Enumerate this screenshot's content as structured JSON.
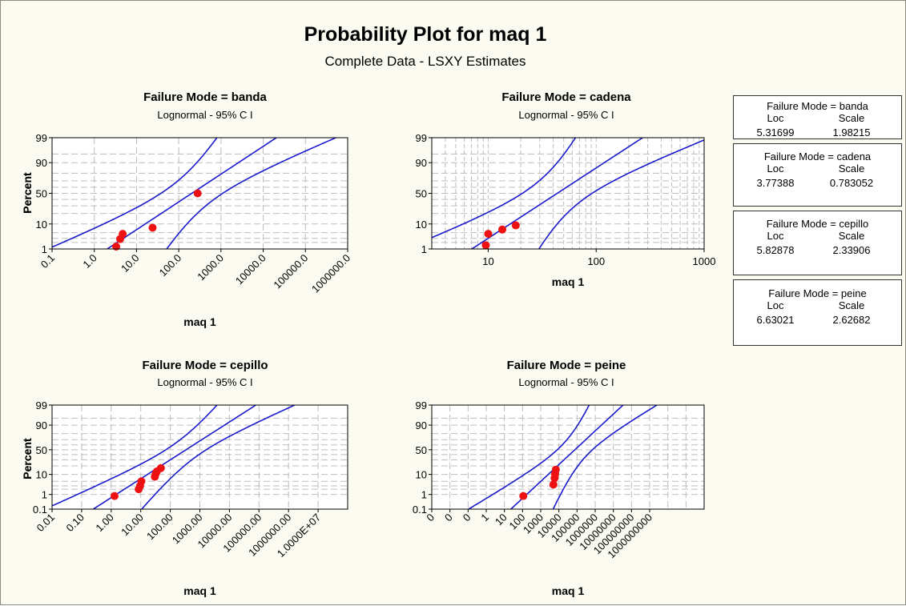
{
  "title": "Probability Plot for maq 1",
  "subtitle": "Complete Data - LSXY Estimates",
  "colors": {
    "background": "#fbfbf1",
    "line": "#1a1acc",
    "point": "#ee1111",
    "grid": "#bdbdbd"
  },
  "legend_labels": {
    "loc": "Loc",
    "scale": "Scale"
  },
  "chart_data": [
    {
      "type": "scatter",
      "title": "Failure Mode = banda",
      "subtitle": "Lognormal - 95% C I",
      "xlabel": "maq 1",
      "ylabel": "Percent",
      "x_scale": "log",
      "y_scale": "lognormal probability",
      "xlim": [
        0.1,
        1000000.0
      ],
      "ylim": [
        1,
        99
      ],
      "x_ticks": [
        "0.1",
        "1.0",
        "10.0",
        "100.0",
        "1000.0",
        "10000.0",
        "100000.0",
        "1000000.0"
      ],
      "y_ticks": [
        "1",
        "10",
        "50",
        "90",
        "99"
      ],
      "grid": true,
      "loc": 5.31699,
      "scale": 1.98215,
      "loc_label": "5.31699",
      "scale_label": "1.98215",
      "points": [
        {
          "x": 3.3,
          "y": 1.3
        },
        {
          "x": 4.1,
          "y": 2.8
        },
        {
          "x": 4.7,
          "y": 4.5
        },
        {
          "x": 24,
          "y": 7.5
        },
        {
          "x": 280,
          "y": 50
        }
      ]
    },
    {
      "type": "scatter",
      "title": "Failure Mode = cadena",
      "subtitle": "Lognormal - 95% C I",
      "xlabel": "maq 1",
      "ylabel": "Percent",
      "x_scale": "log",
      "y_scale": "lognormal probability",
      "xlim": [
        3,
        1000
      ],
      "ylim": [
        1,
        99
      ],
      "x_ticks": [
        "10",
        "100",
        "1000"
      ],
      "y_ticks": [
        "1",
        "10",
        "50",
        "90",
        "99"
      ],
      "grid": true,
      "loc": 3.77388,
      "scale": 0.783052,
      "loc_label": "3.77388",
      "scale_label": "0.783052",
      "points": [
        {
          "x": 9.5,
          "y": 1.5
        },
        {
          "x": 10,
          "y": 4.5
        },
        {
          "x": 13.5,
          "y": 6.5
        },
        {
          "x": 18,
          "y": 9
        }
      ]
    },
    {
      "type": "scatter",
      "title": "Failure Mode = cepillo",
      "subtitle": "Lognormal - 95% C I",
      "xlabel": "maq 1",
      "ylabel": "Percent",
      "x_scale": "log",
      "y_scale": "lognormal probability",
      "xlim": [
        0.01,
        100000000.0
      ],
      "ylim": [
        0.1,
        99
      ],
      "x_ticks": [
        "0.01",
        "0.10",
        "1.00",
        "10.00",
        "100.00",
        "1000.00",
        "10000.00",
        "100000.00",
        "1000000.00",
        "1.0000E+07"
      ],
      "y_ticks": [
        "0.1",
        "1",
        "10",
        "50",
        "90",
        "99"
      ],
      "grid": true,
      "loc": 5.82878,
      "scale": 2.33906,
      "loc_label": "5.82878",
      "scale_label": "2.33906",
      "points": [
        {
          "x": 1.3,
          "y": 0.8
        },
        {
          "x": 8.5,
          "y": 2
        },
        {
          "x": 9.5,
          "y": 3
        },
        {
          "x": 10.5,
          "y": 5
        },
        {
          "x": 30,
          "y": 8
        },
        {
          "x": 32,
          "y": 10.5
        },
        {
          "x": 35,
          "y": 13
        },
        {
          "x": 48,
          "y": 17
        }
      ]
    },
    {
      "type": "scatter",
      "title": "Failure Mode = peine",
      "subtitle": "Lognormal - 95% C I",
      "xlabel": "maq 1",
      "ylabel": "Percent",
      "x_scale": "log",
      "y_scale": "lognormal probability",
      "xlim": [
        1e-05,
        10000000000.0
      ],
      "ylim": [
        0.1,
        99
      ],
      "x_ticks": [
        "0",
        "0",
        "0",
        "1",
        "10",
        "100",
        "1000",
        "10000",
        "100000",
        "1000000",
        "10000000",
        "100000000",
        "1000000000"
      ],
      "y_ticks": [
        "0.1",
        "1",
        "10",
        "50",
        "90",
        "99"
      ],
      "grid": true,
      "loc": 6.63021,
      "scale": 2.62682,
      "loc_label": "6.63021",
      "scale_label": "2.62682",
      "points": [
        {
          "x": 1.1,
          "y": 0.8
        },
        {
          "x": 50,
          "y": 3.5
        },
        {
          "x": 58,
          "y": 7
        },
        {
          "x": 62,
          "y": 10.5
        },
        {
          "x": 68,
          "y": 15
        }
      ]
    }
  ]
}
